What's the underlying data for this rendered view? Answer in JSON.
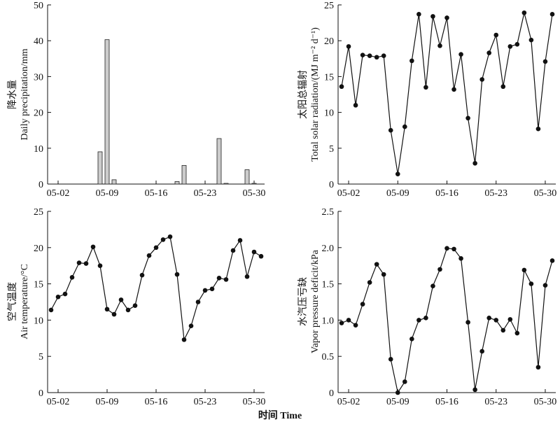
{
  "chart_data": [
    {
      "type": "bar",
      "ylabel_cn": "降水量",
      "ylabel": "Daily precipitation/mm",
      "ylim": [
        0,
        50
      ],
      "yticks": [
        "0",
        "10",
        "20",
        "30",
        "40",
        "50"
      ],
      "xtick_labels": [
        "05-02",
        "05-09",
        "05-16",
        "05-23",
        "05-30"
      ],
      "xtick_days": [
        2,
        9,
        16,
        23,
        30
      ],
      "x": [
        8,
        9,
        10,
        19,
        20,
        25,
        26,
        29,
        30
      ],
      "values": [
        9.0,
        40.3,
        1.2,
        0.7,
        5.2,
        12.7,
        0.2,
        4.0,
        0.2
      ],
      "bar_fill": "#cccccc",
      "bar_stroke": "#222222"
    },
    {
      "type": "line",
      "ylabel_cn": "太阳总辐射",
      "ylabel": "Total solar radiation/(MJ m⁻² d⁻¹)",
      "ylim": [
        0,
        25
      ],
      "yticks": [
        "0",
        "5",
        "10",
        "15",
        "20",
        "25"
      ],
      "xtick_labels": [
        "05-02",
        "05-09",
        "05-16",
        "05-23",
        "05-30"
      ],
      "xtick_days": [
        2,
        9,
        16,
        23,
        30
      ],
      "x": [
        1,
        2,
        3,
        4,
        5,
        6,
        7,
        8,
        9,
        10,
        11,
        12,
        13,
        14,
        15,
        16,
        17,
        18,
        19,
        20,
        21,
        22,
        23,
        24,
        25,
        26,
        27,
        28,
        29,
        30,
        31
      ],
      "values": [
        13.6,
        19.2,
        11.0,
        18.0,
        17.9,
        17.7,
        17.9,
        7.5,
        1.4,
        8.0,
        17.2,
        23.7,
        13.5,
        23.4,
        19.3,
        23.2,
        13.2,
        18.1,
        9.2,
        2.9,
        14.6,
        18.3,
        20.8,
        13.6,
        19.2,
        19.5,
        23.9,
        20.1,
        7.7,
        17.1,
        23.7
      ]
    },
    {
      "type": "line",
      "ylabel_cn": "空气温度",
      "ylabel": "Air temperature/°C",
      "ylim": [
        0,
        25
      ],
      "yticks": [
        "0",
        "5",
        "10",
        "15",
        "20",
        "25"
      ],
      "xtick_labels": [
        "05-02",
        "05-09",
        "05-16",
        "05-23",
        "05-30"
      ],
      "xtick_days": [
        2,
        9,
        16,
        23,
        30
      ],
      "x": [
        1,
        2,
        3,
        4,
        5,
        6,
        7,
        8,
        9,
        10,
        11,
        12,
        13,
        14,
        15,
        16,
        17,
        18,
        19,
        20,
        21,
        22,
        23,
        24,
        25,
        26,
        27,
        28,
        29,
        30,
        31
      ],
      "values": [
        11.4,
        13.2,
        13.6,
        15.9,
        17.9,
        17.8,
        20.1,
        17.5,
        11.5,
        10.8,
        12.8,
        11.4,
        12.0,
        16.2,
        18.9,
        20.0,
        21.1,
        21.5,
        16.3,
        7.3,
        9.2,
        12.5,
        14.1,
        14.3,
        15.8,
        15.6,
        19.6,
        21.0,
        16.0,
        19.4,
        18.8
      ]
    },
    {
      "type": "line",
      "ylabel_cn": "水汽压亏缺",
      "ylabel": "Vapor pressure deficit/kPa",
      "ylim": [
        0,
        2.5
      ],
      "yticks": [
        "0",
        "0.5",
        "1.0",
        "1.5",
        "2.0",
        "2.5"
      ],
      "xtick_labels": [
        "05-02",
        "05-09",
        "05-16",
        "05-23",
        "05-30"
      ],
      "xtick_days": [
        2,
        9,
        16,
        23,
        30
      ],
      "x": [
        1,
        2,
        3,
        4,
        5,
        6,
        7,
        8,
        9,
        10,
        11,
        12,
        13,
        14,
        15,
        16,
        17,
        18,
        19,
        20,
        21,
        22,
        23,
        24,
        25,
        26,
        27,
        28,
        29,
        30,
        31
      ],
      "values": [
        0.96,
        1.0,
        0.93,
        1.22,
        1.52,
        1.77,
        1.63,
        0.46,
        0.0,
        0.15,
        0.74,
        1.0,
        1.03,
        1.47,
        1.7,
        1.99,
        1.98,
        1.85,
        0.97,
        0.04,
        0.57,
        1.03,
        1.0,
        0.86,
        1.01,
        0.82,
        1.69,
        1.5,
        0.35,
        1.48,
        1.82
      ]
    }
  ],
  "shared_xlabel": "时间 Time"
}
